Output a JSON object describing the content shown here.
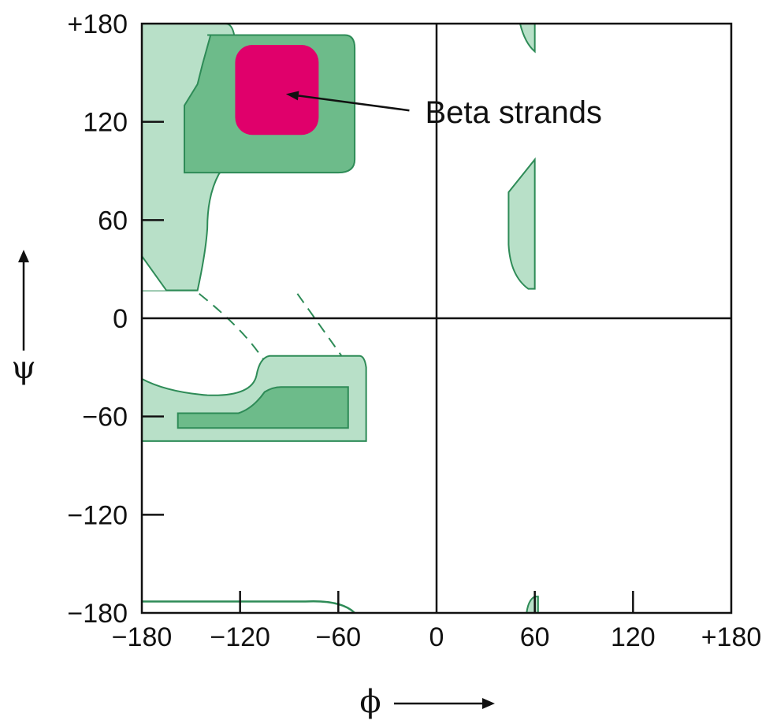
{
  "chart_data": {
    "type": "area",
    "title": "",
    "xlabel": "ϕ",
    "ylabel": "ψ",
    "xlim": [
      -180,
      180
    ],
    "ylim": [
      -180,
      180
    ],
    "xticks": [
      -180,
      -120,
      -60,
      0,
      60,
      120,
      180
    ],
    "xtick_labels": [
      "−180",
      "−120",
      "−60",
      "0",
      "60",
      "120",
      "+180"
    ],
    "yticks": [
      -180,
      -120,
      -60,
      0,
      60,
      120,
      180
    ],
    "ytick_labels": [
      "−180",
      "−120",
      "−60",
      "0",
      "60",
      "120",
      "+180"
    ],
    "grid": false,
    "zero_lines": true,
    "colors": {
      "allowed_fill": "#b8e0c8",
      "favored_fill": "#6dbb8a",
      "region_stroke": "#2e8b57",
      "beta_fill": "#e0006b",
      "axis": "#111111"
    },
    "regions": [
      {
        "name": "allowed-upper-left",
        "level": "allowed",
        "points": [
          [
            -180,
            180
          ],
          [
            -130,
            180
          ],
          [
            -126,
            170
          ],
          [
            -122,
            130
          ],
          [
            -130,
            100
          ],
          [
            -140,
            80
          ],
          [
            -150,
            60
          ],
          [
            -160,
            40
          ],
          [
            -170,
            30
          ],
          [
            -180,
            40
          ]
        ],
        "points_full": [
          [
            -180,
            180
          ],
          [
            -130,
            180
          ],
          [
            -127,
            170
          ],
          [
            -127,
            118
          ],
          [
            -128,
            100
          ],
          [
            -128,
            84
          ],
          [
            -135,
            70
          ],
          [
            -137,
            45
          ],
          [
            -143,
            17
          ],
          [
            -180,
            17
          ]
        ]
      },
      {
        "name": "allowed-upper-left-clean",
        "level": "allowed",
        "points": [
          [
            -180,
            180
          ],
          [
            -126,
            180
          ],
          [
            -123,
            170
          ],
          [
            -123,
            160
          ],
          [
            -122,
            130
          ],
          [
            -128,
            100
          ],
          [
            -133,
            85
          ],
          [
            -135,
            65
          ],
          [
            -137,
            45
          ],
          [
            -143,
            17
          ],
          [
            -180,
            17
          ]
        ]
      }
    ],
    "annotations": [
      {
        "text": "Beta strands",
        "x": -7,
        "y": 126,
        "arrow_to": [
          -92,
          137
        ]
      }
    ]
  }
}
